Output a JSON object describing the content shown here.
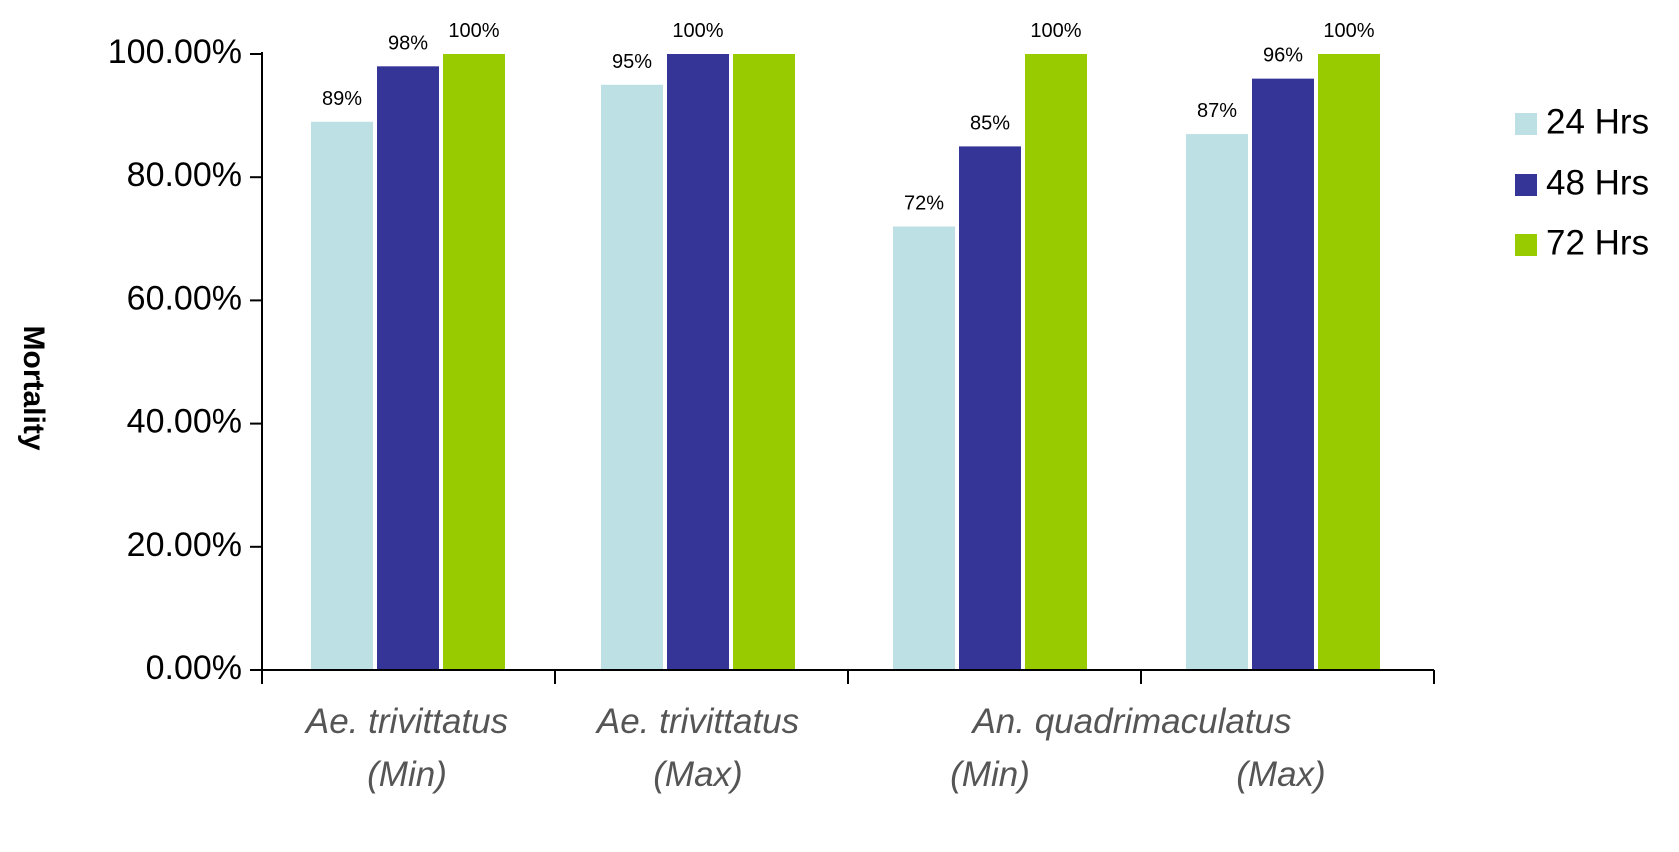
{
  "chart_data": {
    "type": "bar",
    "ylabel": "Mortality",
    "ylim": [
      0,
      100
    ],
    "y_ticks": [
      "0.00%",
      "20.00%",
      "40.00%",
      "60.00%",
      "80.00%",
      "100.00%"
    ],
    "y_tick_values": [
      0,
      20,
      40,
      60,
      80,
      100
    ],
    "categories": [
      {
        "line1": "Ae. trivittatus",
        "line2": "(Min)"
      },
      {
        "line1": "Ae. trivittatus",
        "line2": "(Max)"
      },
      {
        "line1": "An. quadrimaculatus",
        "line2": "(Min)"
      },
      {
        "line1": "",
        "line2": "(Max)"
      }
    ],
    "series": [
      {
        "name": "24 Hrs",
        "color": "#bde0e4",
        "values": [
          89,
          95,
          72,
          87
        ],
        "labels": [
          "89%",
          "95%",
          "72%",
          "87%"
        ]
      },
      {
        "name": "48 Hrs",
        "color": "#353497",
        "values": [
          98,
          100,
          85,
          96
        ],
        "labels": [
          "98%",
          "100%",
          "85%",
          "96%"
        ]
      },
      {
        "name": "72 Hrs",
        "color": "#99cc00",
        "values": [
          100,
          100,
          100,
          100
        ],
        "labels": [
          "100%",
          "",
          "100%",
          "100%"
        ]
      }
    ],
    "legend_position": "right",
    "grid": false
  }
}
